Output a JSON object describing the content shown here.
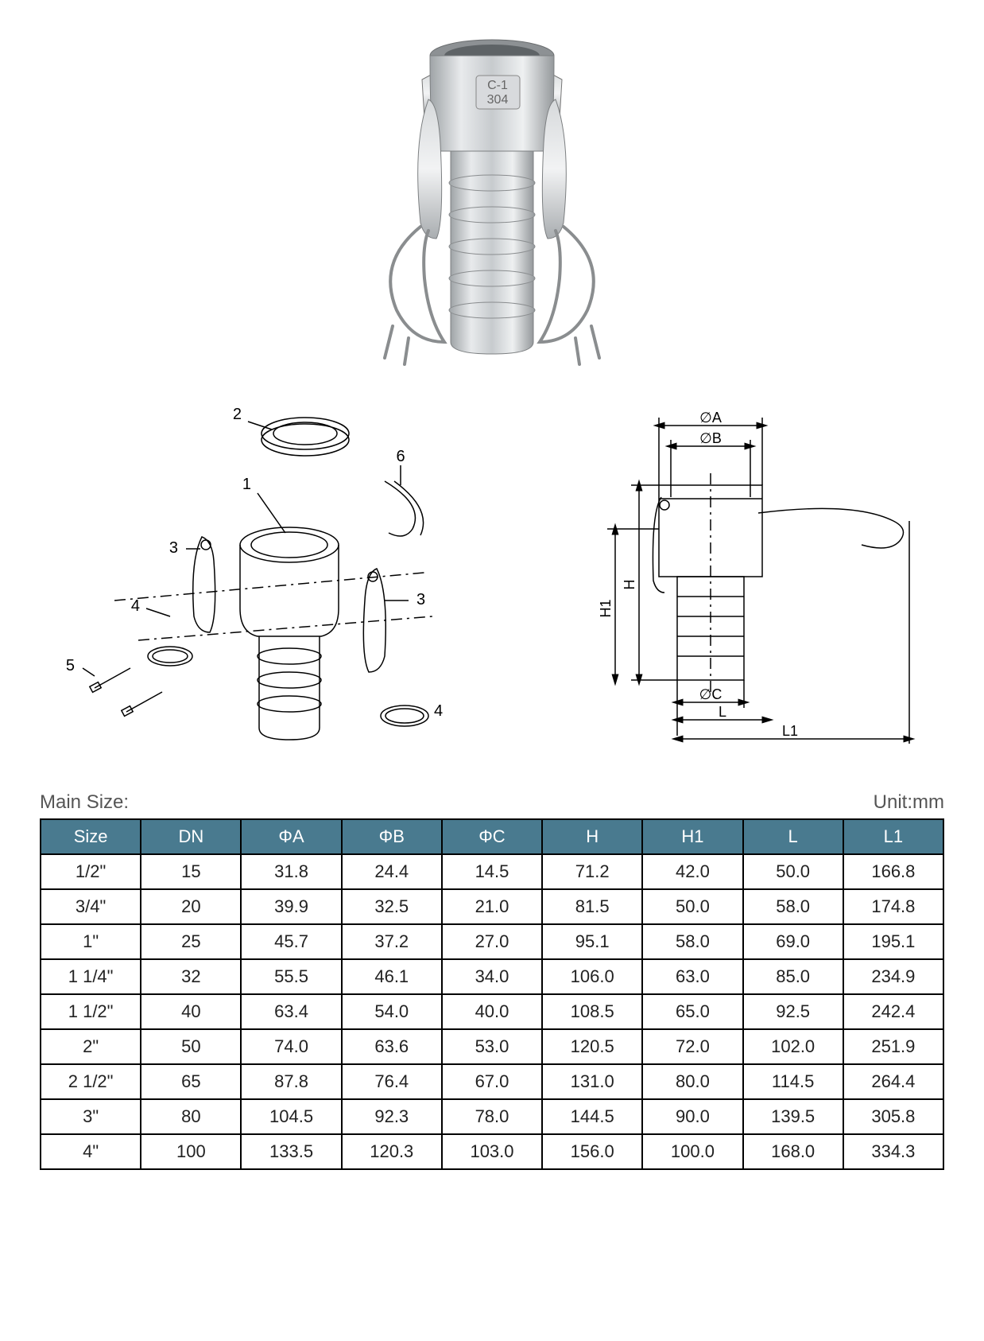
{
  "unit_label": "Unit:mm",
  "main_size_label": "Main Size:",
  "product_marking": "C-1 304",
  "diagram": {
    "callouts": [
      "1",
      "2",
      "3",
      "4",
      "5",
      "6"
    ],
    "dims": {
      "phiA": "∅A",
      "phiB": "∅B",
      "phiC": "∅C",
      "H": "H",
      "H1": "H1",
      "L": "L",
      "L1": "L1"
    }
  },
  "table": {
    "header_bg": "#497a8f",
    "header_fg": "#ffffff",
    "border_color": "#000000",
    "columns": [
      "Size",
      "DN",
      "ΦA",
      "ΦB",
      "ΦC",
      "H",
      "H1",
      "L",
      "L1"
    ],
    "rows": [
      [
        "1/2\"",
        "15",
        "31.8",
        "24.4",
        "14.5",
        "71.2",
        "42.0",
        "50.0",
        "166.8"
      ],
      [
        "3/4\"",
        "20",
        "39.9",
        "32.5",
        "21.0",
        "81.5",
        "50.0",
        "58.0",
        "174.8"
      ],
      [
        "1\"",
        "25",
        "45.7",
        "37.2",
        "27.0",
        "95.1",
        "58.0",
        "69.0",
        "195.1"
      ],
      [
        "1 1/4\"",
        "32",
        "55.5",
        "46.1",
        "34.0",
        "106.0",
        "63.0",
        "85.0",
        "234.9"
      ],
      [
        "1 1/2\"",
        "40",
        "63.4",
        "54.0",
        "40.0",
        "108.5",
        "65.0",
        "92.5",
        "242.4"
      ],
      [
        "2\"",
        "50",
        "74.0",
        "63.6",
        "53.0",
        "120.5",
        "72.0",
        "102.0",
        "251.9"
      ],
      [
        "2 1/2\"",
        "65",
        "87.8",
        "76.4",
        "67.0",
        "131.0",
        "80.0",
        "114.5",
        "264.4"
      ],
      [
        "3\"",
        "80",
        "104.5",
        "92.3",
        "78.0",
        "144.5",
        "90.0",
        "139.5",
        "305.8"
      ],
      [
        "4\"",
        "100",
        "133.5",
        "120.3",
        "103.0",
        "156.0",
        "100.0",
        "168.0",
        "334.3"
      ]
    ]
  }
}
